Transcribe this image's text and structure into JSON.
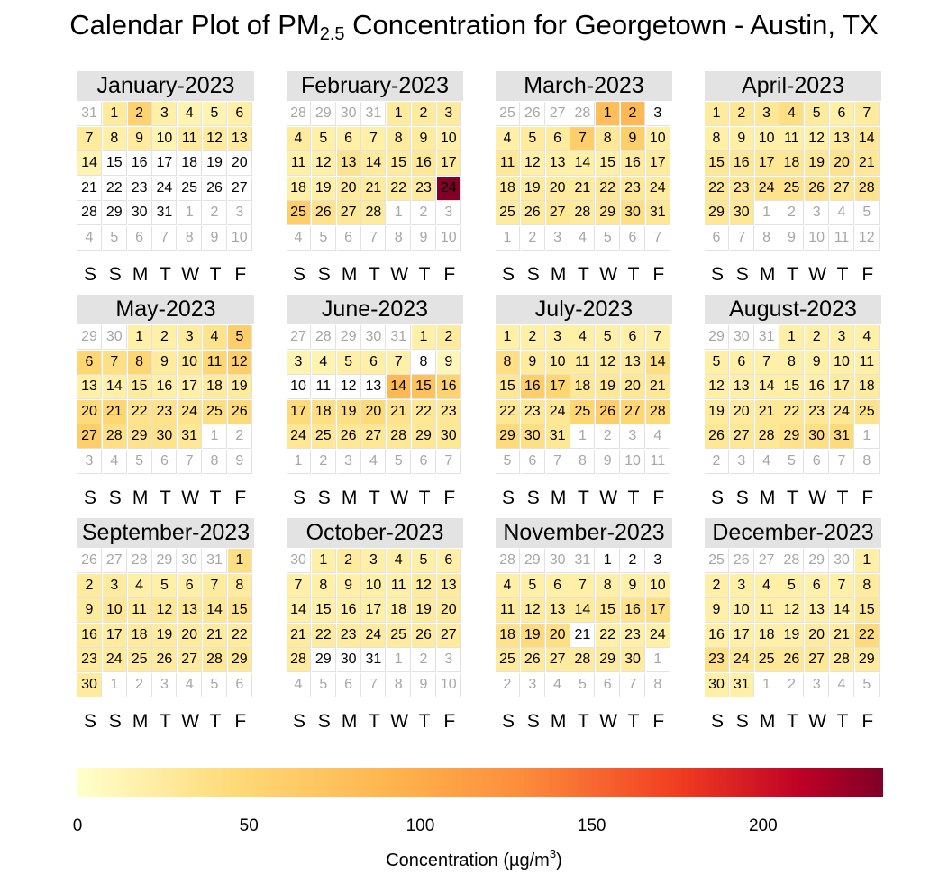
{
  "title": {
    "main": "Calendar Plot of PM",
    "sub": "2.5",
    "rest": " Concentration for Georgetown - Austin, TX"
  },
  "colors": {
    "low": "#ffffcc",
    "mid1": "#fed976",
    "mid2": "#feb24c",
    "mid3": "#fd8d3c",
    "mid4": "#f03b20",
    "high": "#800026",
    "grid": "#e2e2e2",
    "header": "#e3e3e3"
  },
  "chart_data": {
    "type": "heatmap",
    "year": 2023,
    "weekday_labels": [
      "S",
      "S",
      "M",
      "T",
      "W",
      "T",
      "F"
    ],
    "color_scale": {
      "min": 0,
      "max": 235,
      "ticks": [
        0,
        50,
        100,
        150,
        200
      ]
    },
    "legend_title": {
      "main": "Concentration (µg/m",
      "sup": "3",
      "close": ")"
    },
    "months": [
      {
        "name": "January-2023",
        "start_offset": 1,
        "days": 31,
        "prev_days": 31,
        "values": [
          25,
          55,
          20,
          15,
          15,
          20,
          25,
          20,
          25,
          15,
          25,
          25,
          25,
          15,
          0,
          0,
          0,
          0,
          0,
          0,
          0,
          0,
          0,
          0,
          0,
          0,
          0,
          0,
          0,
          0,
          0
        ]
      },
      {
        "name": "February-2023",
        "start_offset": 4,
        "days": 28,
        "prev_days": 31,
        "values": [
          25,
          25,
          25,
          25,
          20,
          20,
          20,
          25,
          25,
          20,
          20,
          20,
          35,
          25,
          25,
          30,
          25,
          20,
          20,
          25,
          25,
          25,
          25,
          235,
          60,
          35,
          30,
          25
        ]
      },
      {
        "name": "March-2023",
        "start_offset": 4,
        "days": 31,
        "prev_days": 28,
        "values": [
          80,
          85,
          0,
          20,
          25,
          25,
          60,
          30,
          60,
          20,
          30,
          20,
          20,
          20,
          20,
          25,
          25,
          25,
          25,
          25,
          25,
          30,
          30,
          25,
          25,
          25,
          30,
          25,
          30,
          40,
          30
        ]
      },
      {
        "name": "April-2023",
        "start_offset": 0,
        "days": 30,
        "prev_days": 31,
        "values": [
          25,
          30,
          30,
          40,
          25,
          20,
          25,
          20,
          20,
          20,
          20,
          20,
          25,
          30,
          30,
          30,
          30,
          30,
          30,
          35,
          30,
          30,
          30,
          35,
          35,
          35,
          30,
          35,
          30,
          30
        ]
      },
      {
        "name": "May-2023",
        "start_offset": 2,
        "days": 31,
        "prev_days": 30,
        "values": [
          20,
          20,
          25,
          35,
          60,
          50,
          40,
          50,
          25,
          30,
          50,
          60,
          20,
          20,
          25,
          20,
          20,
          25,
          25,
          45,
          50,
          35,
          35,
          35,
          40,
          45,
          60,
          40,
          35,
          35,
          30
        ]
      },
      {
        "name": "June-2023",
        "start_offset": 5,
        "days": 30,
        "prev_days": 31,
        "values": [
          20,
          25,
          15,
          15,
          20,
          20,
          20,
          0,
          10,
          0,
          0,
          0,
          0,
          85,
          75,
          55,
          45,
          40,
          40,
          45,
          35,
          30,
          30,
          30,
          30,
          30,
          30,
          30,
          30,
          30
        ]
      },
      {
        "name": "July-2023",
        "start_offset": 0,
        "days": 31,
        "prev_days": 30,
        "values": [
          20,
          20,
          20,
          20,
          20,
          20,
          20,
          40,
          25,
          25,
          25,
          25,
          25,
          40,
          30,
          60,
          50,
          30,
          30,
          30,
          30,
          30,
          30,
          30,
          50,
          60,
          50,
          45,
          45,
          40,
          30
        ]
      },
      {
        "name": "August-2023",
        "start_offset": 3,
        "days": 31,
        "prev_days": 31,
        "values": [
          20,
          20,
          20,
          20,
          20,
          20,
          20,
          20,
          20,
          20,
          20,
          20,
          20,
          20,
          20,
          20,
          25,
          25,
          25,
          25,
          30,
          30,
          30,
          30,
          35,
          30,
          30,
          30,
          35,
          40,
          45
        ]
      },
      {
        "name": "September-2023",
        "start_offset": 6,
        "days": 30,
        "prev_days": 31,
        "values": [
          40,
          25,
          25,
          20,
          20,
          20,
          25,
          25,
          25,
          30,
          25,
          30,
          30,
          30,
          35,
          25,
          25,
          25,
          25,
          25,
          25,
          25,
          25,
          25,
          25,
          25,
          25,
          30,
          30,
          25
        ]
      },
      {
        "name": "October-2023",
        "start_offset": 1,
        "days": 31,
        "prev_days": 30,
        "values": [
          20,
          25,
          20,
          20,
          20,
          20,
          20,
          20,
          20,
          20,
          20,
          25,
          25,
          20,
          20,
          20,
          20,
          20,
          25,
          25,
          25,
          25,
          25,
          25,
          25,
          25,
          25,
          25,
          0,
          0,
          0
        ]
      },
      {
        "name": "November-2023",
        "start_offset": 4,
        "days": 30,
        "prev_days": 31,
        "values": [
          0,
          0,
          0,
          20,
          20,
          20,
          20,
          20,
          20,
          20,
          25,
          25,
          25,
          25,
          30,
          35,
          40,
          35,
          45,
          40,
          0,
          20,
          20,
          20,
          25,
          25,
          25,
          25,
          25,
          25
        ]
      },
      {
        "name": "December-2023",
        "start_offset": 6,
        "days": 31,
        "prev_days": 30,
        "values": [
          20,
          20,
          20,
          20,
          20,
          20,
          20,
          25,
          20,
          20,
          20,
          20,
          20,
          20,
          30,
          20,
          20,
          20,
          20,
          25,
          25,
          45,
          40,
          30,
          30,
          30,
          30,
          25,
          25,
          20,
          20
        ]
      }
    ]
  }
}
